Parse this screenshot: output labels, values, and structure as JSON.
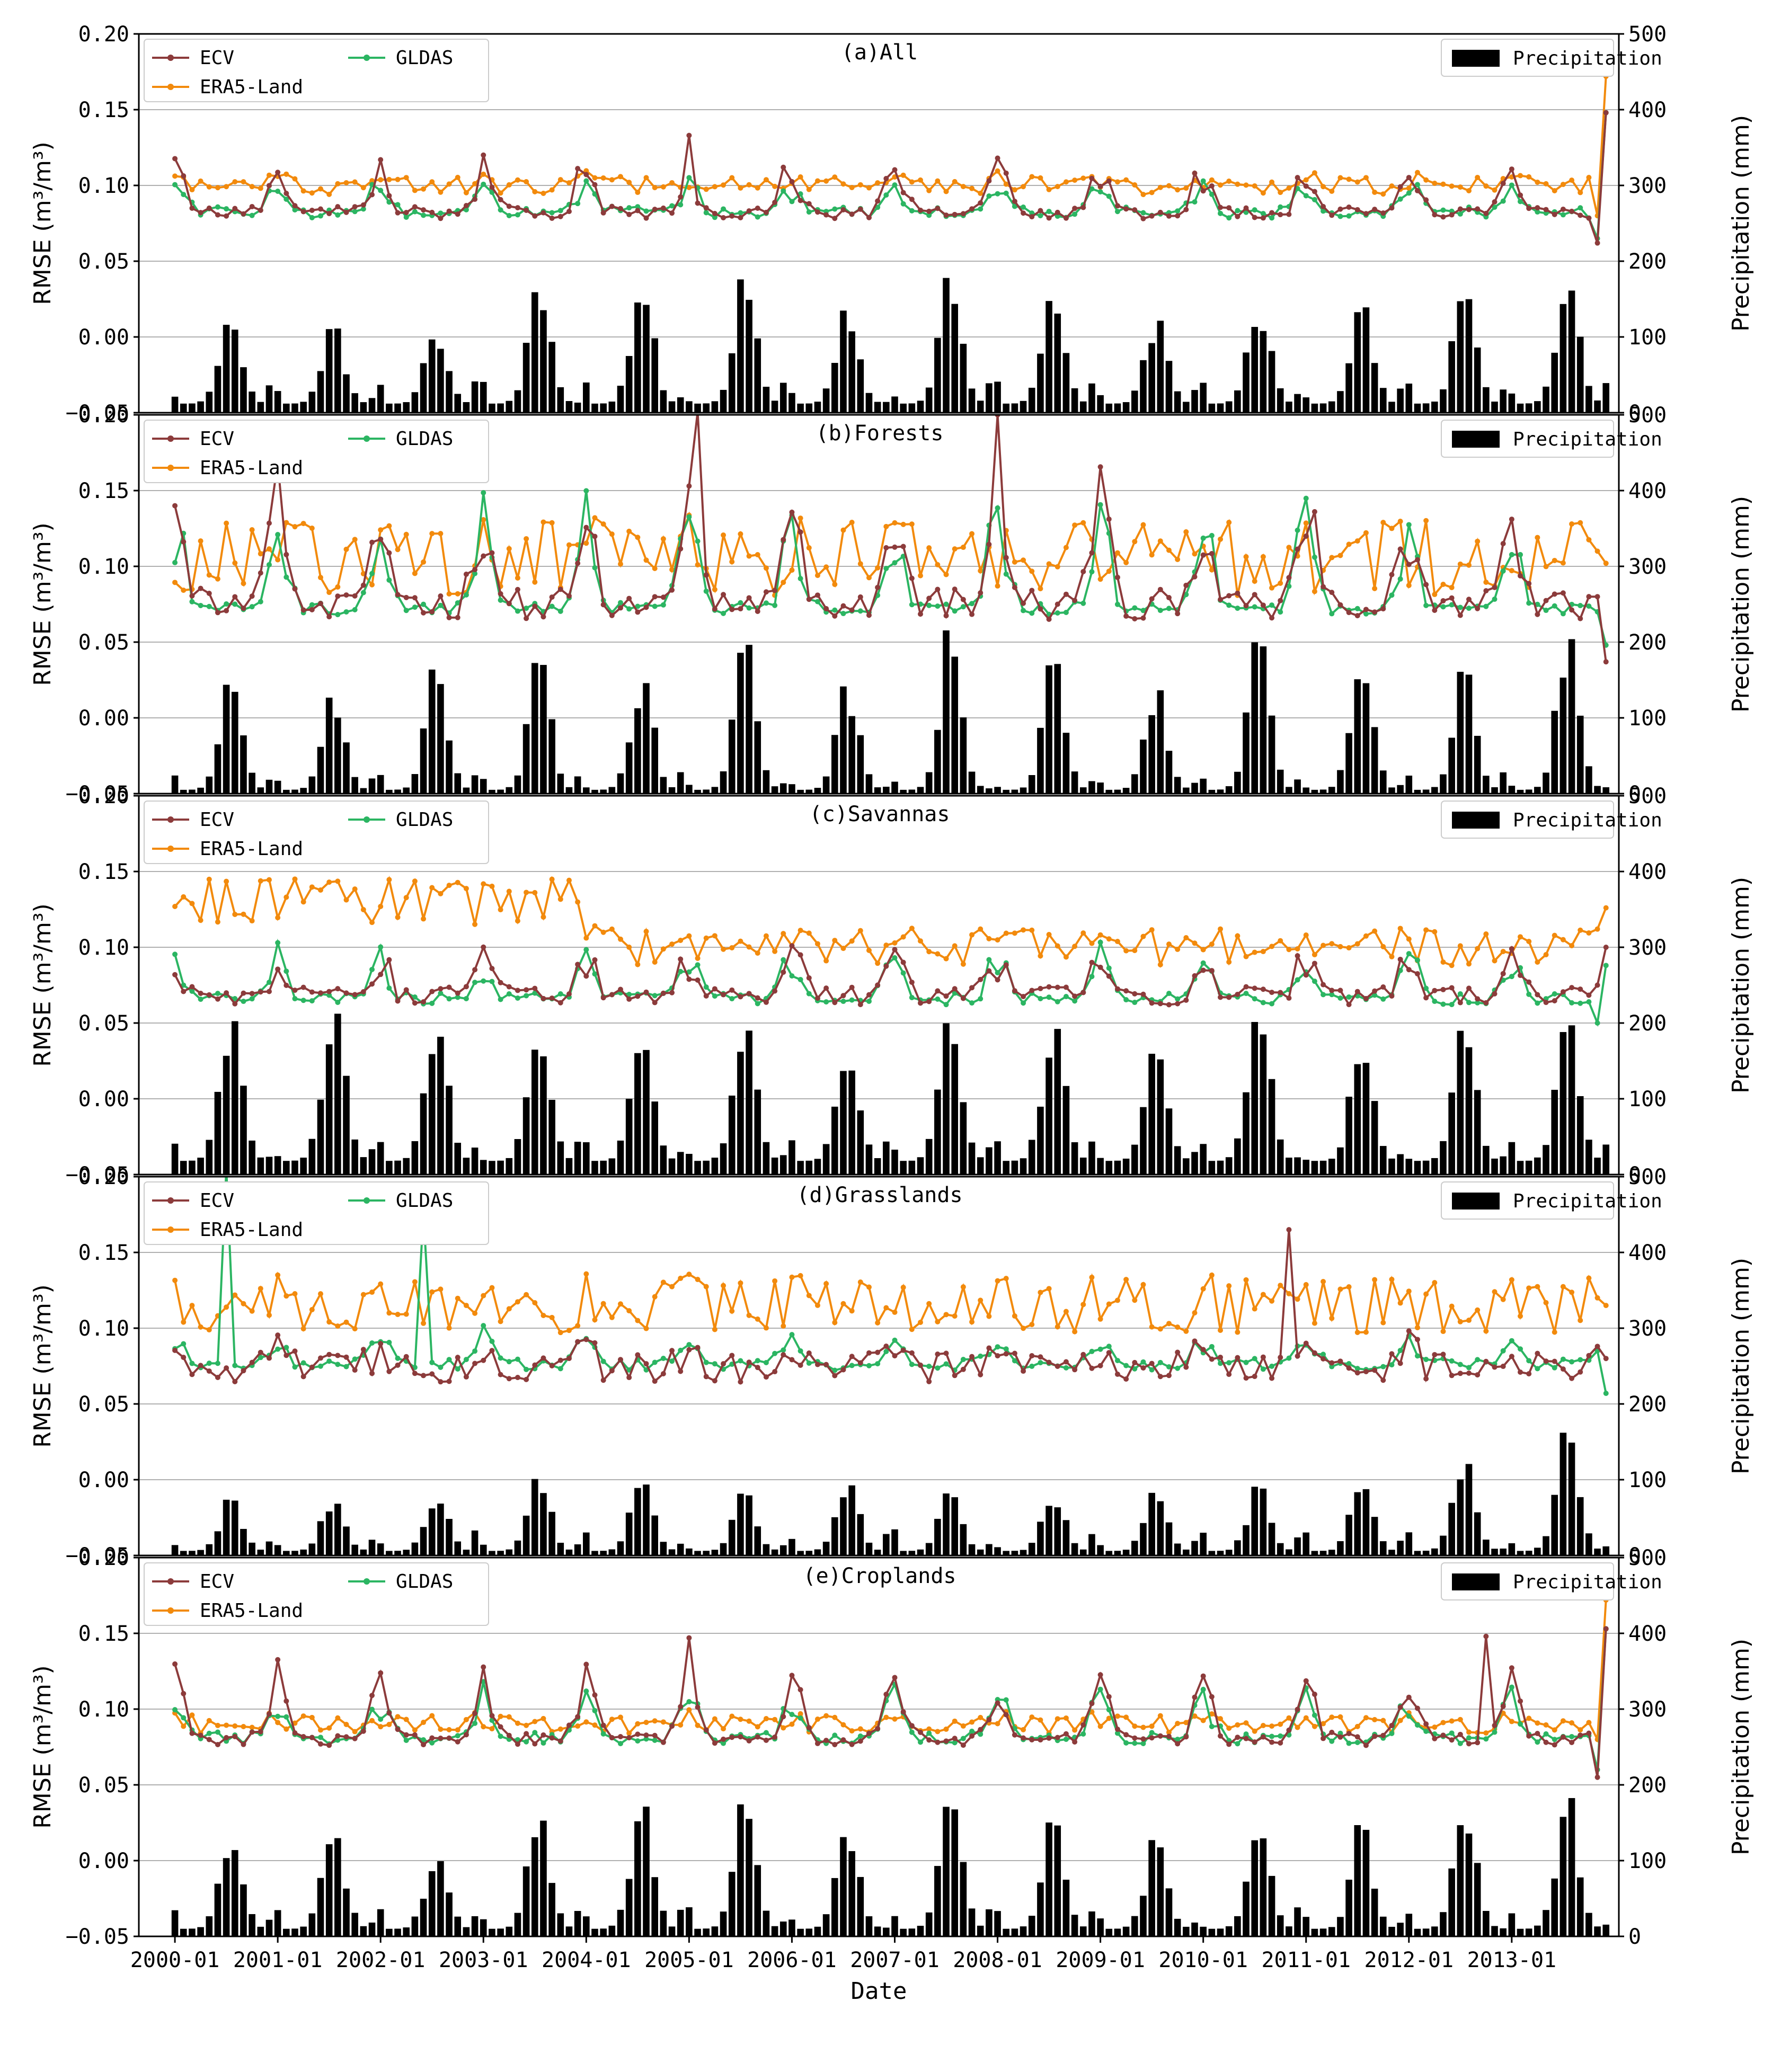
{
  "chart_data": {
    "type": "line+bar",
    "xlabel": "Date",
    "ylabel_left": "RMSE (m³/m³)",
    "ylabel_right": "Precipitation (mm)",
    "ylim_left": [
      -0.05,
      0.2
    ],
    "yticks_left": [
      "−0.05",
      "0.00",
      "0.05",
      "0.10",
      "0.15",
      "0.20"
    ],
    "ylim_right": [
      0,
      500
    ],
    "yticks_right": [
      "0",
      "100",
      "200",
      "300",
      "400",
      "500"
    ],
    "x_ticks": [
      "2000-01",
      "2001-01",
      "2002-01",
      "2003-01",
      "2004-01",
      "2005-01",
      "2006-01",
      "2007-01",
      "2008-01",
      "2009-01",
      "2010-01",
      "2011-01",
      "2012-01",
      "2013-01"
    ],
    "x_start": "2000-01",
    "x_count": 168,
    "grid": "horizontal",
    "series_colors": {
      "ECV": "#8c3b3b",
      "ERA5-Land": "#f28a0c",
      "GLDAS": "#2bb562",
      "Precipitation": "#000000"
    },
    "legend_labels": {
      "ecv": "ECV",
      "era5": "ERA5-Land",
      "gldas": "GLDAS",
      "precip": "Precipitation"
    },
    "panels": [
      {
        "title": "(a)All",
        "ecv": {
          "base": 0.082,
          "peak": 0.028,
          "spike": {
            "2005-01": 0.133
          },
          "spread": 0.004,
          "end": [
            0.062,
            0.148
          ]
        },
        "era5": {
          "base": 0.1,
          "amp": 0.006,
          "end": [
            0.08,
            0.172
          ]
        },
        "gldas": {
          "base": 0.082,
          "peak": 0.018,
          "end": [
            0.065,
            0.148
          ]
        },
        "precip_peaks": [
          135,
          115,
          110,
          165,
          170,
          175,
          140,
          175,
          155,
          125,
          150,
          145,
          165,
          185
        ],
        "precip_min": 12
      },
      {
        "title": "(b)Forests",
        "ecv": {
          "base": 0.075,
          "peak": 0.06,
          "spike": {
            "2005-02": 0.202,
            "2008-01": 0.2
          },
          "spread": 0.01,
          "end": [
            0.08,
            0.037
          ]
        },
        "era5": {
          "base": 0.105,
          "amp": 0.025,
          "end": [
            0.11,
            0.102
          ]
        },
        "gldas": {
          "base": 0.072,
          "peak": 0.055,
          "end": [
            0.07,
            0.048
          ]
        },
        "precip_peaks": [
          160,
          135,
          165,
          175,
          160,
          205,
          145,
          215,
          175,
          140,
          200,
          175,
          160,
          210
        ],
        "precip_min": 5
      },
      {
        "title": "(c)Savannas",
        "ecv": {
          "base": 0.068,
          "peak": 0.025,
          "spike": {},
          "spread": 0.006,
          "end": [
            0.075,
            0.1
          ]
        },
        "era5": {
          "base": 0.1,
          "amp": 0.012,
          "early": 0.13,
          "end": [
            0.112,
            0.126
          ]
        },
        "gldas": {
          "base": 0.066,
          "peak": 0.025,
          "end": [
            0.05,
            0.088
          ]
        },
        "precip_peaks": [
          200,
          225,
          215,
          200,
          195,
          195,
          170,
          215,
          200,
          175,
          215,
          175,
          195,
          200
        ],
        "precip_min": 18
      },
      {
        "title": "(d)Grasslands",
        "ecv": {
          "base": 0.074,
          "peak": 0.012,
          "spike": {
            "2010-11": 0.165
          },
          "spread": 0.01,
          "end": [
            0.088,
            0.08
          ]
        },
        "era5": {
          "base": 0.115,
          "amp": 0.018,
          "end": [
            0.12,
            0.115
          ]
        },
        "gldas": {
          "base": 0.076,
          "peak": 0.015,
          "spike": {
            "2000-07": 0.205,
            "2002-06": 0.176
          },
          "end": [
            0.085,
            0.057
          ]
        },
        "precip_peaks": [
          75,
          80,
          85,
          100,
          100,
          85,
          95,
          85,
          85,
          95,
          95,
          95,
          140,
          175
        ],
        "precip_min": 6
      },
      {
        "title": "(e)Croplands",
        "ecv": {
          "base": 0.08,
          "peak": 0.035,
          "spike": {
            "2005-01": 0.147,
            "2012-10": 0.148
          },
          "spread": 0.004,
          "end": [
            0.055,
            0.153
          ]
        },
        "era5": {
          "base": 0.09,
          "amp": 0.006,
          "end": [
            0.08,
            0.172
          ]
        },
        "gldas": {
          "base": 0.081,
          "peak": 0.025,
          "end": [
            0.06,
            0.153
          ]
        },
        "precip_peaks": [
          135,
          150,
          115,
          165,
          180,
          175,
          140,
          180,
          165,
          125,
          160,
          145,
          170,
          185
        ],
        "precip_min": 10
      }
    ]
  }
}
